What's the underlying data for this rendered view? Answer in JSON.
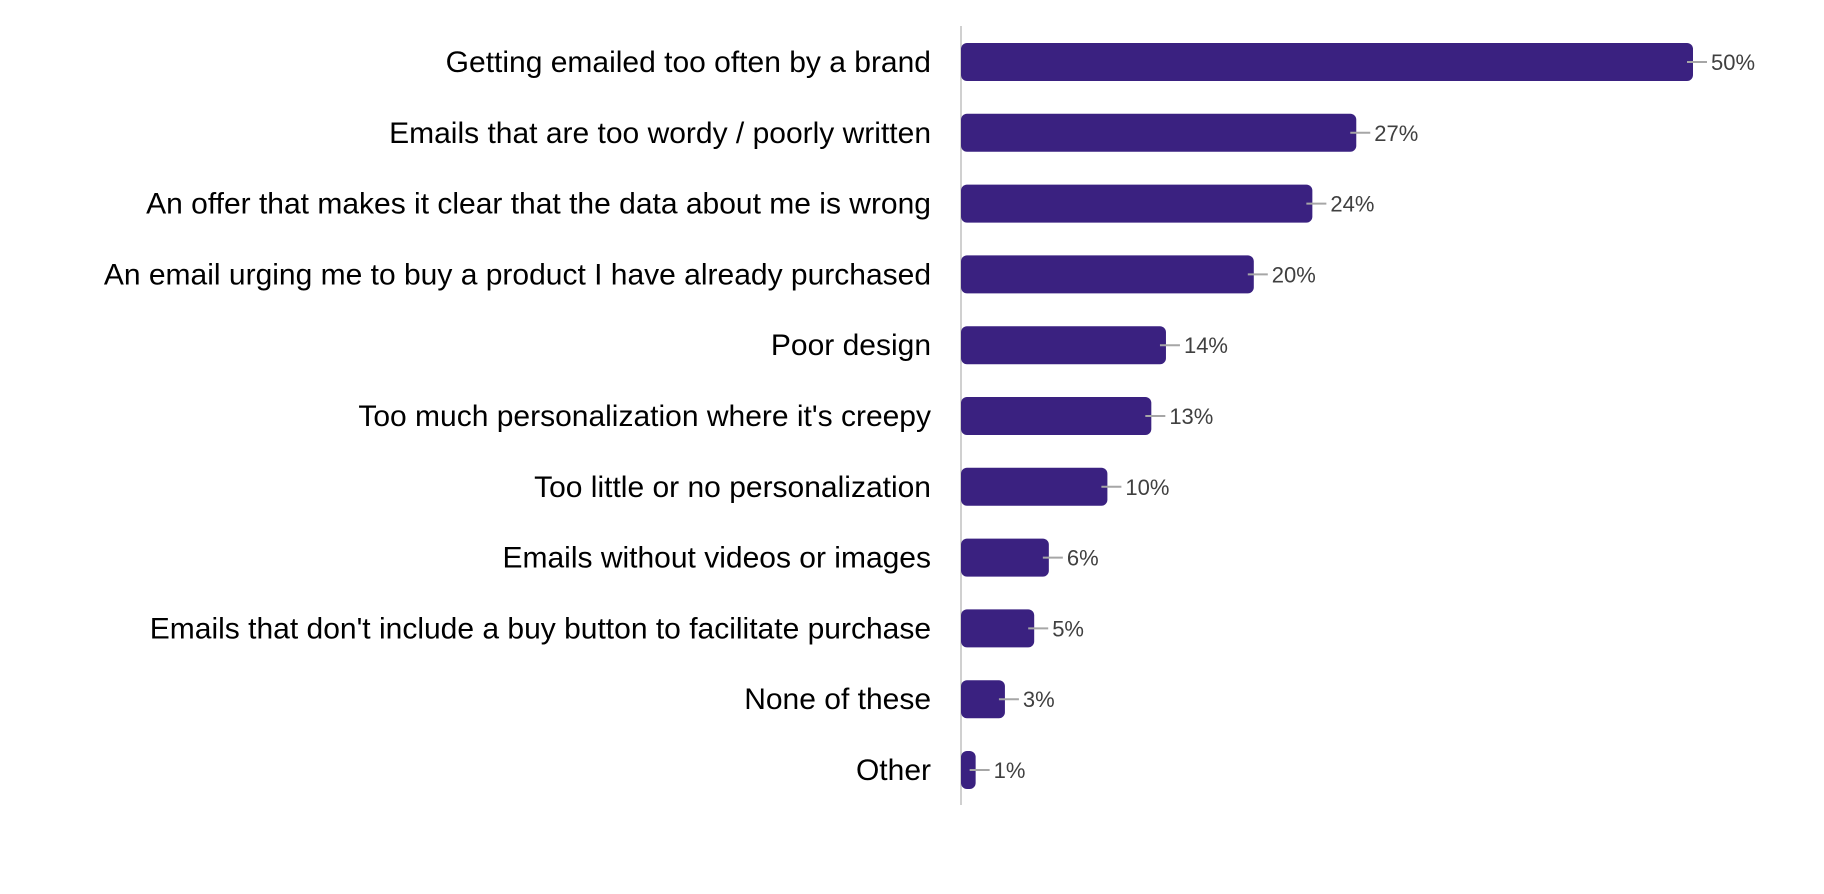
{
  "chart_data": {
    "type": "bar",
    "orientation": "horizontal",
    "categories": [
      "Getting emailed too often by a brand",
      "Emails that are too wordy / poorly written",
      "An offer that makes it clear that the data about me is wrong",
      "An email urging me to buy a product I have already purchased",
      "Poor design",
      "Too much personalization where it's creepy",
      "Too little or no personalization",
      "Emails without videos or images",
      "Emails that don't include a buy button to facilitate purchase",
      "None of these",
      "Other"
    ],
    "values": [
      50,
      27,
      24,
      20,
      14,
      13,
      10,
      6,
      5,
      3,
      1
    ],
    "data_labels": [
      "50%",
      "27%",
      "24%",
      "20%",
      "14%",
      "13%",
      "10%",
      "6%",
      "5%",
      "3%",
      "1%"
    ],
    "value_unit": "%",
    "xlim": [
      0,
      50
    ],
    "title": "",
    "xlabel": "",
    "ylabel": "",
    "grid": false,
    "legend": "none",
    "colors": {
      "bar": "#3A2180",
      "axis": "#D0D0D0",
      "leader": "#A6A6A6",
      "label_text": "#404040"
    }
  }
}
